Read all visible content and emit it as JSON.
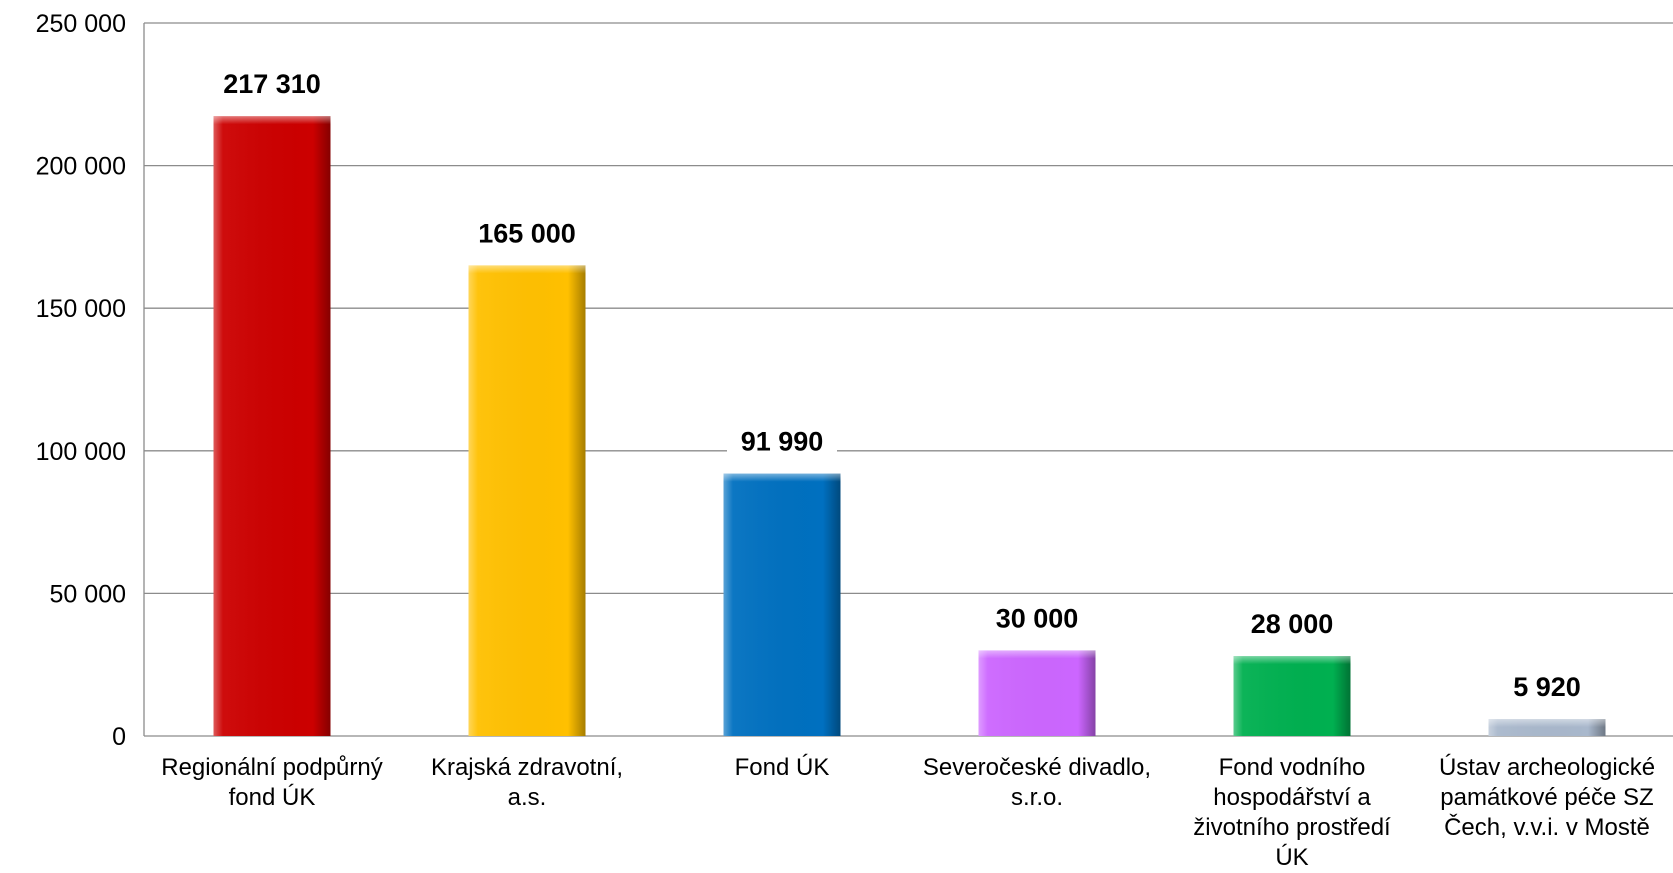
{
  "chart_data": {
    "type": "bar",
    "title": "",
    "xlabel": "",
    "ylabel": "",
    "ylim": [
      0,
      250000
    ],
    "yticks": [
      0,
      50000,
      100000,
      150000,
      200000,
      250000
    ],
    "ytick_labels": [
      "0",
      "50 000",
      "100 000",
      "150 000",
      "200 000",
      "250 000"
    ],
    "grid": true,
    "legend": "none",
    "categories": [
      [
        "Regionální podpůrný",
        "fond ÚK"
      ],
      [
        "Krajská zdravotní,",
        "a.s."
      ],
      [
        "Fond ÚK"
      ],
      [
        "Severočeské divadlo,",
        "s.r.o."
      ],
      [
        "Fond vodního",
        "hospodářství a",
        "životního prostředí",
        "ÚK"
      ],
      [
        "Ústav archeologické",
        "památkové péče SZ",
        "Čech, v.v.i. v Mostě"
      ]
    ],
    "values": [
      217310,
      165000,
      91990,
      30000,
      28000,
      5920
    ],
    "data_labels": [
      "217 310",
      "165 000",
      "91 990",
      "30 000",
      "28 000",
      "5 920"
    ],
    "colors": [
      "#cc0000",
      "#ffc000",
      "#0070c0",
      "#cc66ff",
      "#00b050",
      "#a9b8cc"
    ]
  }
}
